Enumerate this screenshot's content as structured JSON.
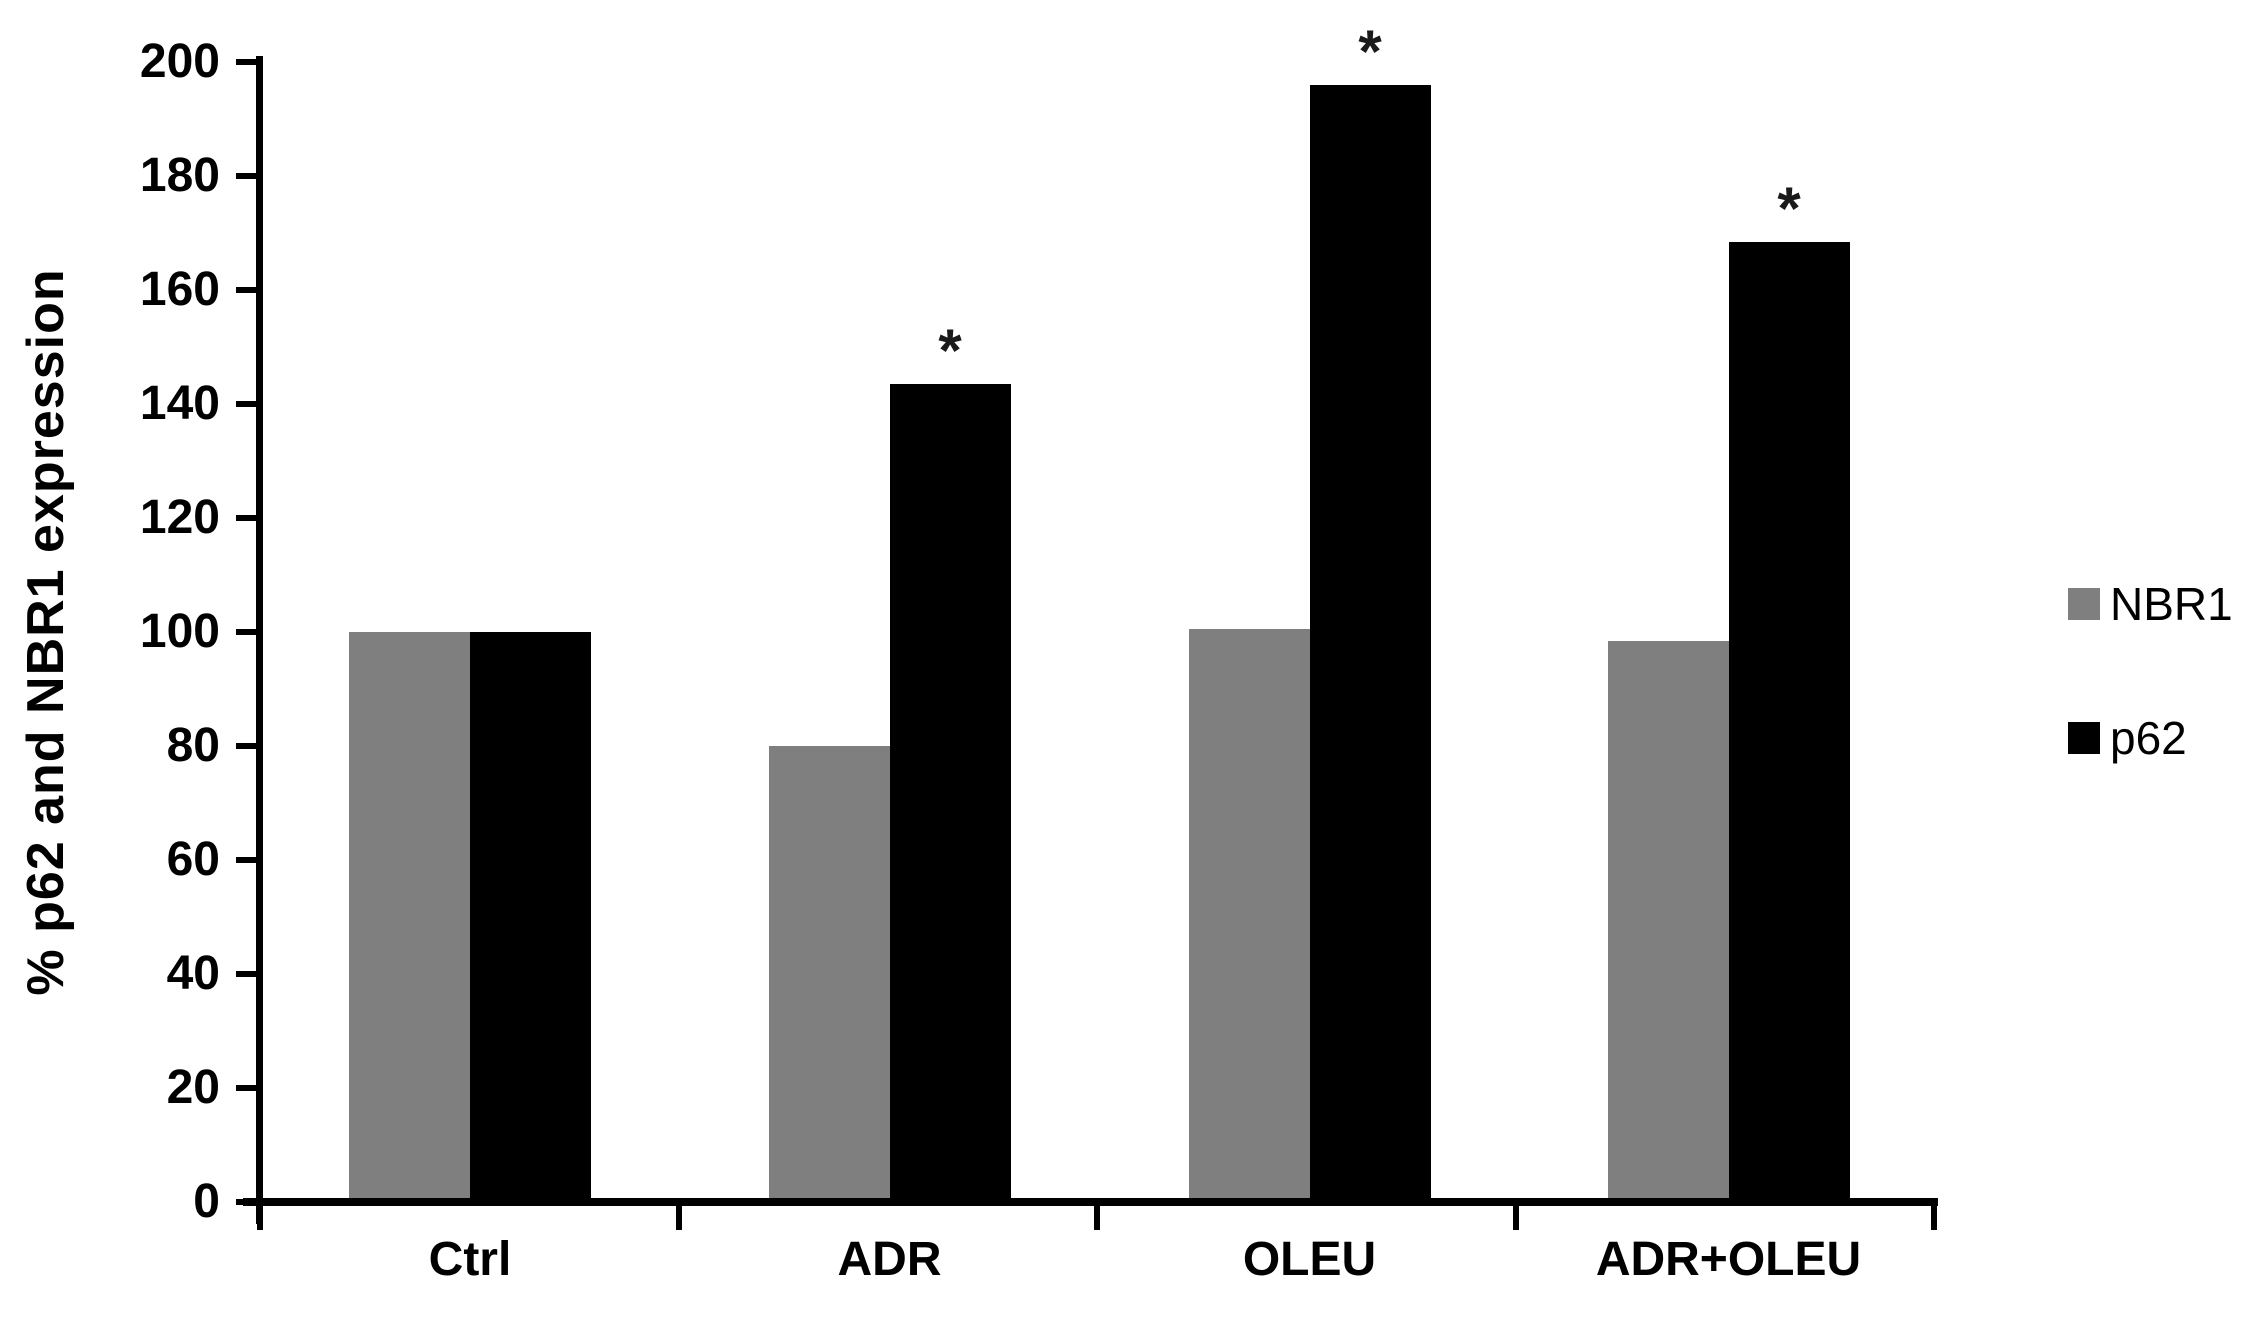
{
  "chart_data": {
    "type": "bar",
    "title": "",
    "ylabel": "% p62 and NBR1 expression",
    "xlabel": "",
    "categories": [
      "Ctrl",
      "ADR",
      "OLEU",
      "ADR+OLEU"
    ],
    "series": [
      {
        "name": "NBR1",
        "color": "#7f7f7f",
        "values": [
          100,
          80,
          100.5,
          98.5
        ],
        "significant": [
          false,
          false,
          false,
          false
        ]
      },
      {
        "name": "p62",
        "color": "#000000",
        "values": [
          100,
          143.5,
          196,
          168.5
        ],
        "significant": [
          false,
          true,
          true,
          true
        ]
      }
    ],
    "significance_marker": "*",
    "ylim": [
      0,
      200
    ],
    "yticks": [
      0,
      20,
      40,
      60,
      80,
      100,
      120,
      140,
      160,
      180,
      200
    ],
    "grid": false,
    "legend_position": "right",
    "bar_gap_between_series": 0,
    "axis_color": "#000000",
    "text_color": "#000000",
    "background_color": "#ffffff"
  }
}
